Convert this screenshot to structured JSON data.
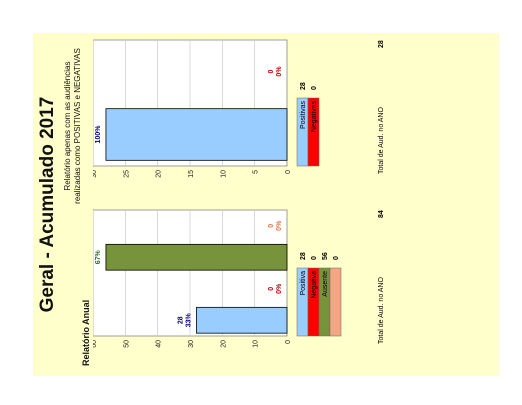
{
  "page": {
    "title": "Geral - Acumulado 2017",
    "left_subtitle": "Relatório Anual",
    "right_subtitle": "Relatório apenas com as audiências realizadas como POSITIVAS e NEGATIVAS"
  },
  "chart_data": [
    {
      "type": "bar",
      "title": "Relatório Anual",
      "ylim": [
        0,
        60
      ],
      "yticks": [
        0,
        10,
        20,
        30,
        40,
        50,
        60
      ],
      "grid": true,
      "series": [
        {
          "name": "Positiva",
          "value": 28,
          "pct": "33%",
          "color": "#99ccff",
          "label_color": "#000080"
        },
        {
          "name": "Negativa",
          "value": 0,
          "pct": "0%",
          "color": "#ff0000",
          "label_color": "#c00000"
        },
        {
          "name": "Ausente",
          "value": 56,
          "pct": "67%",
          "color": "#77933c",
          "label_color": "#2e6b2e"
        },
        {
          "name": "",
          "value": 0,
          "pct": "0%",
          "color": "#f4a582",
          "label_color": "#e0723f"
        }
      ],
      "legend": [
        {
          "label": "Positiva",
          "value": "28",
          "color": "#99ccff"
        },
        {
          "label": "Negativa",
          "value": "0",
          "color": "#ff0000"
        },
        {
          "label": "Ausente",
          "value": "56",
          "color": "#77933c"
        },
        {
          "label": "",
          "value": "0",
          "color": "#f4a582"
        }
      ],
      "total_label": "Total de Aud. no ANO",
      "total_value": "84"
    },
    {
      "type": "bar",
      "title": "Relatório apenas com as audiências realizadas como POSITIVAS e NEGATIVAS",
      "ylim": [
        0,
        30
      ],
      "yticks": [
        0,
        5,
        10,
        15,
        20,
        25,
        30
      ],
      "grid": true,
      "series": [
        {
          "name": "Positivas",
          "value": 28,
          "pct": "100%",
          "color": "#99ccff",
          "label_color": "#000080"
        },
        {
          "name": "Negativas",
          "value": 0,
          "pct": "0%",
          "color": "#ff0000",
          "label_color": "#c00000"
        }
      ],
      "legend": [
        {
          "label": "Positivas",
          "value": "28",
          "color": "#99ccff"
        },
        {
          "label": "Negativas",
          "value": "0",
          "color": "#ff0000"
        }
      ],
      "total_label": "Total de Aud. no ANO",
      "total_value": "28"
    }
  ]
}
